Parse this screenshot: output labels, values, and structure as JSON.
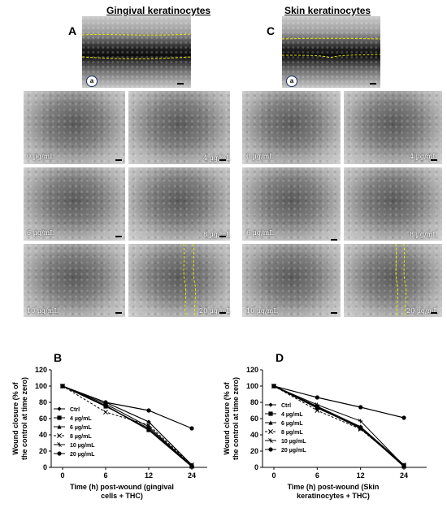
{
  "figure": {
    "left_title": "Gingival keratinocytes",
    "right_title": "Skin keratinocytes",
    "letter_A": "A",
    "letter_C": "C",
    "letter_B": "B",
    "letter_D": "D",
    "badge_label": "a",
    "left_grid_labels": [
      "0 µg/mL",
      "4 µg/mL",
      "6 µg/mL",
      "8 µg/mL",
      "10 µg/mL",
      "20 µg/mL"
    ],
    "right_grid_labels": [
      "0 µg/mL",
      "4 µg/mL",
      "6 µg/mL",
      "8 µg/mL",
      "10 µg/mL",
      "20 µg/mL"
    ],
    "wound_line_color": "#e6e600"
  },
  "chart_data": [
    {
      "type": "line",
      "panel": "B",
      "categories": [
        "0",
        "6",
        "12",
        "24"
      ],
      "xlabel": "Time (h) post-wound (gingival cells + THC)",
      "ylabel": "Wound closure (% of the control at time zero)",
      "yticks": [
        "0",
        "20",
        "40",
        "60",
        "80",
        "100",
        "120"
      ],
      "ylim": [
        0,
        120
      ],
      "legend_position": "left",
      "series": [
        {
          "name": "Ctrl",
          "values": [
            100,
            80,
            56,
            3
          ]
        },
        {
          "name": "4 µg/mL",
          "values": [
            100,
            76,
            46,
            1
          ]
        },
        {
          "name": "6 µg/mL",
          "values": [
            100,
            75,
            48,
            2
          ]
        },
        {
          "name": "8 µg/mL",
          "values": [
            100,
            68,
            52,
            3
          ]
        },
        {
          "name": "10 µg/mL",
          "values": [
            100,
            78,
            50,
            2
          ]
        },
        {
          "name": "20 µg/mL",
          "values": [
            100,
            80,
            70,
            48
          ]
        }
      ]
    },
    {
      "type": "line",
      "panel": "D",
      "categories": [
        "0",
        "6",
        "12",
        "24"
      ],
      "xlabel": "Time (h) post-wound (Skin keratinocytes + THC)",
      "ylabel": "Wound closure (% of the control at time zero)",
      "yticks": [
        "0",
        "20",
        "40",
        "60",
        "80",
        "100",
        "120"
      ],
      "ylim": [
        0,
        120
      ],
      "legend_position": "left",
      "series": [
        {
          "name": "Ctrl",
          "values": [
            100,
            75,
            50,
            3
          ]
        },
        {
          "name": "4 µg/mL",
          "values": [
            100,
            74,
            48,
            2
          ]
        },
        {
          "name": "6 µg/mL",
          "values": [
            100,
            73,
            49,
            1
          ]
        },
        {
          "name": "8 µg/mL",
          "values": [
            100,
            70,
            47,
            3
          ]
        },
        {
          "name": "10 µg/mL",
          "values": [
            100,
            77,
            57,
            2
          ]
        },
        {
          "name": "20 µg/mL",
          "values": [
            100,
            86,
            74,
            61
          ]
        }
      ]
    }
  ]
}
